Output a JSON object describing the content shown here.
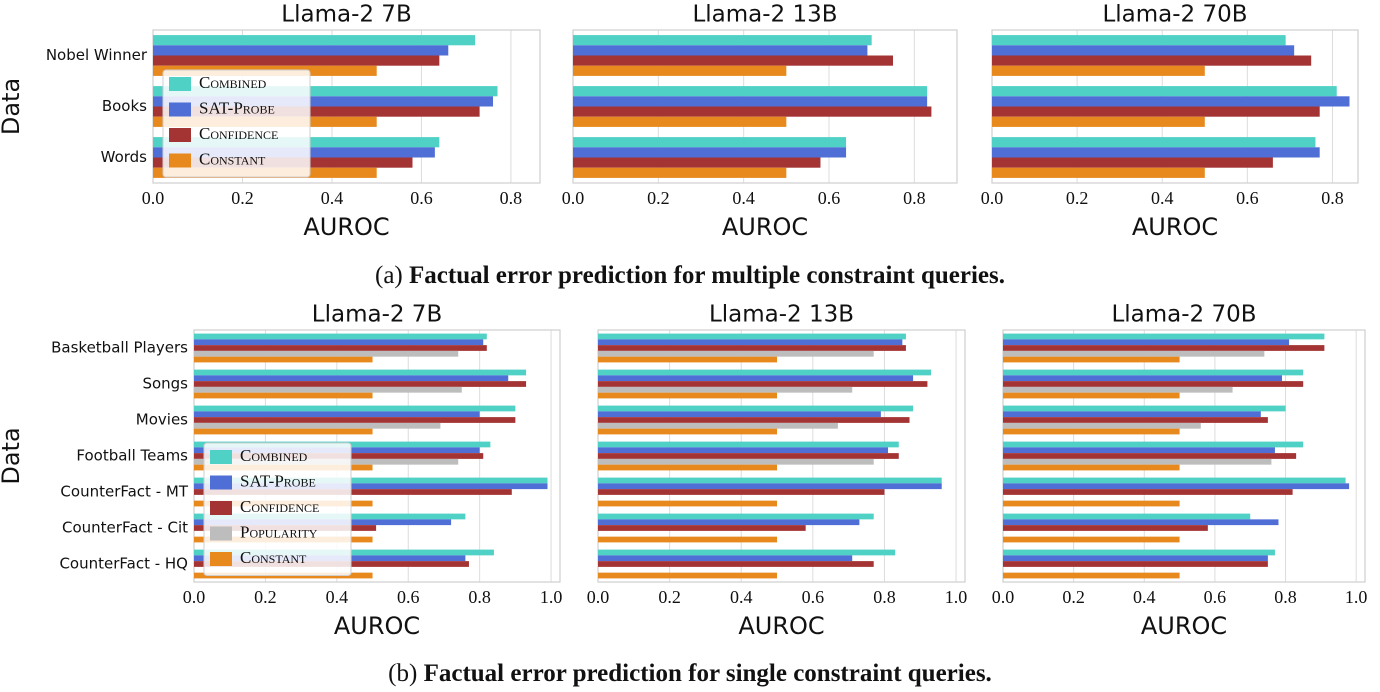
{
  "chart_data": [
    {
      "type": "bar",
      "orientation": "horizontal",
      "title": "Llama-2 7B",
      "xlabel": "AUROC",
      "ylabel": "Data",
      "categories": [
        "Nobel Winner",
        "Books",
        "Words"
      ],
      "series": [
        {
          "name": "Combined",
          "color": "#4fd1c5",
          "values": [
            0.72,
            0.77,
            0.64
          ]
        },
        {
          "name": "SAT-Probe",
          "color": "#4f6fd6",
          "values": [
            0.66,
            0.76,
            0.63
          ]
        },
        {
          "name": "Confidence",
          "color": "#a43333",
          "values": [
            0.64,
            0.73,
            0.58
          ]
        },
        {
          "name": "Constant",
          "color": "#e8891d",
          "values": [
            0.5,
            0.5,
            0.5
          ]
        }
      ],
      "xlim": [
        0,
        0.865
      ],
      "xticks": [
        {
          "value": 0,
          "label": "0.0"
        },
        0.2,
        0.4,
        0.6,
        0.8
      ],
      "grid": true,
      "legend": "center left"
    },
    {
      "type": "bar",
      "orientation": "horizontal",
      "title": "Llama-2 13B",
      "xlabel": "AUROC",
      "series": [
        {
          "color": "#4fd1c5",
          "values": [
            0.7,
            0.83,
            0.64
          ]
        },
        {
          "color": "#4f6fd6",
          "values": [
            0.69,
            0.83,
            0.64
          ]
        },
        {
          "color": "#a43333",
          "values": [
            0.75,
            0.84,
            0.58
          ]
        },
        {
          "color": "#e8891d",
          "values": [
            0.5,
            0.5,
            0.5
          ]
        }
      ],
      "xlim": [
        0,
        0.9
      ],
      "xticks": [
        {
          "value": 0,
          "label": "0.0"
        },
        0.2,
        0.4,
        0.6,
        0.8
      ],
      "grid": true
    },
    {
      "type": "bar",
      "orientation": "horizontal",
      "title": "Llama-2 70B",
      "xlabel": "AUROC",
      "series": [
        {
          "color": "#4fd1c5",
          "values": [
            0.69,
            0.81,
            0.76
          ]
        },
        {
          "color": "#4f6fd6",
          "values": [
            0.71,
            0.84,
            0.77
          ]
        },
        {
          "color": "#a43333",
          "values": [
            0.75,
            0.77,
            0.66
          ]
        },
        {
          "color": "#e8891d",
          "values": [
            0.5,
            0.5,
            0.5
          ]
        }
      ],
      "xlim": [
        0,
        0.86
      ],
      "xticks": [
        {
          "value": 0,
          "label": "0.0"
        },
        0.2,
        0.4,
        0.6,
        0.8
      ],
      "grid": true
    },
    {
      "type": "bar",
      "orientation": "horizontal",
      "title": "Llama-2 7B",
      "xlabel": "AUROC",
      "ylabel": "Data",
      "categories": [
        "Basketball Players",
        "Songs",
        "Movies",
        "Football Teams",
        "CounterFact - MT",
        "CounterFact - Cit",
        "CounterFact - HQ"
      ],
      "series": [
        {
          "name": "Combined",
          "color": "#4fd1c5",
          "values": [
            0.82,
            0.93,
            0.9,
            0.83,
            0.99,
            0.76,
            0.84
          ]
        },
        {
          "name": "SAT-Probe",
          "color": "#4f6fd6",
          "values": [
            0.81,
            0.88,
            0.8,
            0.8,
            0.99,
            0.72,
            0.76
          ]
        },
        {
          "name": "Confidence",
          "color": "#a43333",
          "values": [
            0.82,
            0.93,
            0.9,
            0.81,
            0.89,
            0.51,
            0.77
          ]
        },
        {
          "name": "Popularity",
          "color": "#bdbdbd",
          "values": [
            0.74,
            0.75,
            0.69,
            0.74,
            null,
            null,
            null
          ]
        },
        {
          "name": "Constant",
          "color": "#e8891d",
          "values": [
            0.5,
            0.5,
            0.5,
            0.5,
            0.5,
            0.5,
            0.5
          ]
        }
      ],
      "xlim": [
        0,
        1.025
      ],
      "xticks": [
        {
          "value": 0,
          "label": "0.0"
        },
        0.2,
        0.4,
        0.6,
        0.8,
        {
          "value": 1,
          "label": "1.0"
        }
      ],
      "grid": true,
      "legend": "lower left"
    },
    {
      "type": "bar",
      "orientation": "horizontal",
      "title": "Llama-2 13B",
      "xlabel": "AUROC",
      "series": [
        {
          "color": "#4fd1c5",
          "values": [
            0.86,
            0.93,
            0.88,
            0.84,
            0.96,
            0.77,
            0.83
          ]
        },
        {
          "color": "#4f6fd6",
          "values": [
            0.85,
            0.88,
            0.79,
            0.81,
            0.96,
            0.73,
            0.71
          ]
        },
        {
          "color": "#a43333",
          "values": [
            0.86,
            0.92,
            0.87,
            0.84,
            0.8,
            0.58,
            0.77
          ]
        },
        {
          "color": "#bdbdbd",
          "values": [
            0.77,
            0.71,
            0.67,
            0.77,
            null,
            null,
            null
          ]
        },
        {
          "color": "#e8891d",
          "values": [
            0.5,
            0.5,
            0.5,
            0.5,
            0.5,
            0.5,
            0.5
          ]
        }
      ],
      "xlim": [
        0,
        1.025
      ],
      "xticks": [
        {
          "value": 0,
          "label": "0.0"
        },
        0.2,
        0.4,
        0.6,
        0.8,
        {
          "value": 1,
          "label": "1.0"
        }
      ],
      "grid": true
    },
    {
      "type": "bar",
      "orientation": "horizontal",
      "title": "Llama-2 70B",
      "xlabel": "AUROC",
      "series": [
        {
          "color": "#4fd1c5",
          "values": [
            0.91,
            0.85,
            0.8,
            0.85,
            0.97,
            0.7,
            0.77
          ]
        },
        {
          "color": "#4f6fd6",
          "values": [
            0.81,
            0.79,
            0.73,
            0.77,
            0.98,
            0.78,
            0.75
          ]
        },
        {
          "color": "#a43333",
          "values": [
            0.91,
            0.85,
            0.75,
            0.83,
            0.82,
            0.58,
            0.75
          ]
        },
        {
          "color": "#bdbdbd",
          "values": [
            0.74,
            0.65,
            0.56,
            0.76,
            null,
            null,
            null
          ]
        },
        {
          "color": "#e8891d",
          "values": [
            0.5,
            0.5,
            0.5,
            0.5,
            0.5,
            0.5,
            0.5
          ]
        }
      ],
      "xlim": [
        0,
        1.025
      ],
      "xticks": [
        {
          "value": 0,
          "label": "0.0"
        },
        0.2,
        0.4,
        0.6,
        0.8,
        {
          "value": 1,
          "label": "1.0"
        }
      ],
      "grid": true
    }
  ],
  "captions": [
    {
      "label": "(a)",
      "text": "Factual error prediction for multiple constraint queries."
    },
    {
      "label": "(b)",
      "text": "Factual error prediction for single constraint queries."
    }
  ]
}
